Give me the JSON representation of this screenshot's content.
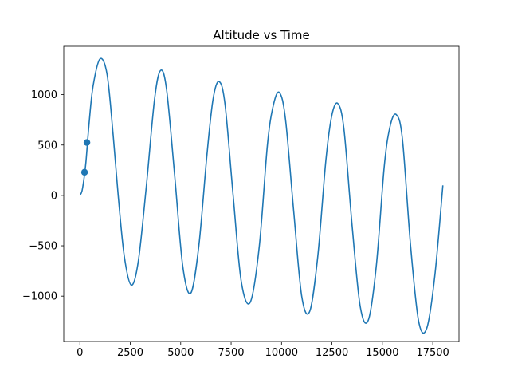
{
  "chart_data": {
    "type": "line",
    "title": "Altitude vs Time",
    "xlabel": "",
    "ylabel": "",
    "xlim": [
      -800,
      18800
    ],
    "ylim": [
      -1450,
      1480
    ],
    "grid": false,
    "legend": "none",
    "x_ticks": [
      0,
      2500,
      5000,
      7500,
      10000,
      12500,
      15000,
      17500
    ],
    "x_tick_labels": [
      "0",
      "2500",
      "5000",
      "7500",
      "10000",
      "12500",
      "15000",
      "17500"
    ],
    "y_ticks": [
      -1000,
      -500,
      0,
      500,
      1000
    ],
    "y_tick_labels": [
      "−1000",
      "−500",
      "0",
      "500",
      "1000"
    ],
    "series": [
      {
        "color": "#1f77b4",
        "x": [
          0,
          100,
          200,
          300,
          450,
          650,
          1000,
          1350,
          1650,
          1900,
          2200,
          2550,
          2900,
          3300,
          3700,
          4000,
          4300,
          4700,
          5100,
          5500,
          5900,
          6300,
          6600,
          6900,
          7200,
          7600,
          8000,
          8450,
          8900,
          9300,
          9600,
          9900,
          10200,
          10600,
          11000,
          11400,
          11800,
          12200,
          12500,
          12800,
          13100,
          13500,
          13900,
          14300,
          14700,
          15100,
          15400,
          15700,
          16000,
          16400,
          16800,
          17200,
          17600,
          18000
        ],
        "y": [
          0,
          40,
          160,
          330,
          700,
          1080,
          1355,
          1200,
          600,
          0,
          -600,
          -890,
          -650,
          100,
          950,
          1240,
          1050,
          200,
          -700,
          -970,
          -500,
          400,
          950,
          1130,
          900,
          0,
          -850,
          -1060,
          -500,
          500,
          900,
          1020,
          750,
          -150,
          -1000,
          -1150,
          -600,
          350,
          800,
          910,
          650,
          -300,
          -1100,
          -1240,
          -700,
          300,
          700,
          800,
          550,
          -500,
          -1250,
          -1320,
          -800,
          100
        ]
      },
      {
        "type": "scatter",
        "color": "#1f77b4",
        "x": [
          230,
          350
        ],
        "y": [
          230,
          525
        ]
      }
    ]
  }
}
